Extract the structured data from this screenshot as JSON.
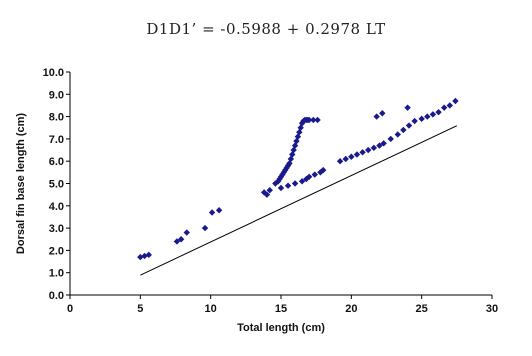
{
  "equation": "D1D1’ = -0.5988 + 0.2978 LT",
  "chart_data": {
    "type": "scatter",
    "xlabel": "Total length (cm)",
    "ylabel": "Dorsal fin base length (cm)",
    "xlim": [
      0,
      30
    ],
    "ylim": [
      0,
      10
    ],
    "x_ticks": [
      "0",
      "5",
      "10",
      "15",
      "20",
      "25",
      "30"
    ],
    "y_ticks": [
      "0.0",
      "1.0",
      "2.0",
      "3.0",
      "4.0",
      "5.0",
      "6.0",
      "7.0",
      "8.0",
      "9.0",
      "10.0"
    ],
    "point_color": "#1a1a8c",
    "trendline": {
      "intercept": -0.5988,
      "slope": 0.2978,
      "x_range": [
        5,
        27.5
      ]
    },
    "series": [
      {
        "x": [
          5.0,
          5.3,
          5.6,
          7.6,
          7.9,
          8.3,
          9.6,
          10.1,
          10.6,
          13.8,
          14.0,
          14.2,
          14.6,
          14.8,
          14.9,
          15.0,
          15.1,
          15.2,
          15.3,
          15.4,
          15.5,
          15.6,
          15.7,
          15.8,
          15.9,
          16.0,
          16.1,
          16.2,
          16.3,
          16.4,
          16.5,
          16.6,
          16.7,
          16.8,
          16.9,
          17.0,
          17.3,
          17.6,
          15.0,
          15.5,
          16.0,
          16.5,
          16.8,
          17.0,
          17.4,
          17.8,
          18.0,
          19.2,
          19.6,
          20.0,
          20.4,
          20.8,
          21.2,
          21.6,
          22.0,
          22.3,
          22.8,
          23.3,
          23.7,
          24.1,
          24.5,
          25.0,
          25.4,
          25.8,
          26.2,
          26.6,
          27.0,
          27.4,
          21.8,
          22.2,
          24.0
        ],
        "y": [
          1.7,
          1.75,
          1.8,
          2.4,
          2.5,
          2.8,
          3.0,
          3.7,
          3.8,
          4.6,
          4.5,
          4.7,
          5.0,
          5.1,
          5.2,
          5.3,
          5.4,
          5.5,
          5.6,
          5.7,
          5.8,
          5.9,
          6.1,
          6.3,
          6.5,
          6.7,
          6.9,
          7.1,
          7.3,
          7.5,
          7.7,
          7.8,
          7.85,
          7.85,
          7.85,
          7.85,
          7.85,
          7.85,
          4.8,
          4.9,
          5.0,
          5.1,
          5.2,
          5.3,
          5.4,
          5.5,
          5.6,
          6.0,
          6.1,
          6.2,
          6.3,
          6.4,
          6.5,
          6.6,
          6.7,
          6.8,
          7.0,
          7.2,
          7.4,
          7.6,
          7.8,
          7.9,
          8.0,
          8.1,
          8.2,
          8.4,
          8.5,
          8.7,
          8.0,
          8.15,
          8.4
        ]
      }
    ]
  }
}
